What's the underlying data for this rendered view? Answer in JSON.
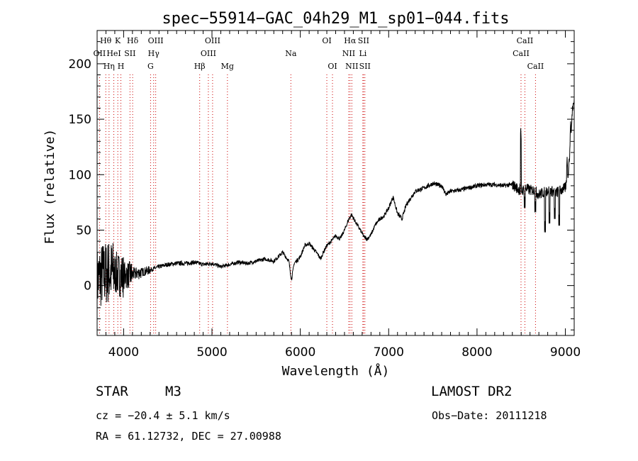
{
  "chart_data": {
    "type": "line",
    "title": "spec−55914−GAC_04h29_M1_sp01−044.fits",
    "xlabel": "Wavelength (Å)",
    "ylabel": "Flux (relative)",
    "xlim": [
      3700,
      9100
    ],
    "ylim": [
      -45,
      230
    ],
    "x_ticks": [
      4000,
      5000,
      6000,
      7000,
      8000,
      9000
    ],
    "y_ticks": [
      0,
      50,
      100,
      150,
      200
    ],
    "grid": false,
    "line_color": "#000000",
    "marker_color": "#cc0000",
    "spectrum_knots": [
      [
        3700,
        5
      ],
      [
        3760,
        10
      ],
      [
        3820,
        12
      ],
      [
        3880,
        12
      ],
      [
        3940,
        10
      ],
      [
        4000,
        9
      ],
      [
        4100,
        10
      ],
      [
        4200,
        12
      ],
      [
        4300,
        14
      ],
      [
        4400,
        17
      ],
      [
        4500,
        19
      ],
      [
        4600,
        20
      ],
      [
        4700,
        20
      ],
      [
        4800,
        21
      ],
      [
        4900,
        19
      ],
      [
        5000,
        20
      ],
      [
        5100,
        17
      ],
      [
        5200,
        19
      ],
      [
        5300,
        21
      ],
      [
        5400,
        20
      ],
      [
        5500,
        22
      ],
      [
        5600,
        24
      ],
      [
        5700,
        22
      ],
      [
        5800,
        30
      ],
      [
        5870,
        22
      ],
      [
        5900,
        5
      ],
      [
        5930,
        20
      ],
      [
        6000,
        26
      ],
      [
        6050,
        36
      ],
      [
        6100,
        38
      ],
      [
        6150,
        33
      ],
      [
        6200,
        28
      ],
      [
        6230,
        24
      ],
      [
        6260,
        30
      ],
      [
        6300,
        36
      ],
      [
        6350,
        40
      ],
      [
        6400,
        45
      ],
      [
        6450,
        42
      ],
      [
        6500,
        50
      ],
      [
        6550,
        60
      ],
      [
        6580,
        64
      ],
      [
        6620,
        58
      ],
      [
        6680,
        50
      ],
      [
        6720,
        44
      ],
      [
        6760,
        42
      ],
      [
        6800,
        46
      ],
      [
        6850,
        55
      ],
      [
        6900,
        60
      ],
      [
        6950,
        63
      ],
      [
        7000,
        70
      ],
      [
        7050,
        80
      ],
      [
        7100,
        65
      ],
      [
        7150,
        60
      ],
      [
        7200,
        73
      ],
      [
        7300,
        85
      ],
      [
        7400,
        88
      ],
      [
        7500,
        92
      ],
      [
        7600,
        90
      ],
      [
        7650,
        82
      ],
      [
        7700,
        85
      ],
      [
        7800,
        86
      ],
      [
        7900,
        88
      ],
      [
        8000,
        90
      ],
      [
        8100,
        91
      ],
      [
        8200,
        91
      ],
      [
        8300,
        90
      ],
      [
        8400,
        91
      ],
      [
        8450,
        88
      ],
      [
        8500,
        85
      ],
      [
        8550,
        88
      ],
      [
        8600,
        86
      ],
      [
        8650,
        86
      ],
      [
        8700,
        82
      ],
      [
        8800,
        86
      ],
      [
        8900,
        84
      ],
      [
        9000,
        88
      ],
      [
        9030,
        100
      ],
      [
        9060,
        130
      ],
      [
        9080,
        160
      ],
      [
        9100,
        165
      ]
    ],
    "spikes": [
      [
        8495,
        142
      ],
      [
        8485,
        92
      ],
      [
        8540,
        80
      ],
      [
        8660,
        76
      ],
      [
        8770,
        58
      ],
      [
        8820,
        66
      ],
      [
        8880,
        70
      ],
      [
        8930,
        64
      ],
      [
        9020,
        116
      ],
      [
        9060,
        148
      ]
    ],
    "lines": [
      {
        "name": "Hθ",
        "wavelength": 3798,
        "row": 1
      },
      {
        "name": "OII",
        "wavelength": 3727,
        "row": 2
      },
      {
        "name": "Hη",
        "wavelength": 3835,
        "row": 3
      },
      {
        "name": "K",
        "wavelength": 3934,
        "row": 1
      },
      {
        "name": "HeI",
        "wavelength": 3889,
        "row": 2
      },
      {
        "name": "H",
        "wavelength": 3969,
        "row": 3
      },
      {
        "name": "Hδ",
        "wavelength": 4102,
        "row": 1
      },
      {
        "name": "SII",
        "wavelength": 4072,
        "row": 2
      },
      {
        "name": "OIII",
        "wavelength": 4363,
        "row": 1
      },
      {
        "name": "Hγ",
        "wavelength": 4340,
        "row": 2
      },
      {
        "name": "G",
        "wavelength": 4305,
        "row": 3
      },
      {
        "name": "OIII",
        "wavelength": 5007,
        "row": 1
      },
      {
        "name": "OIII",
        "wavelength": 4959,
        "row": 2
      },
      {
        "name": "Hβ",
        "wavelength": 4861,
        "row": 3
      },
      {
        "name": "Mg",
        "wavelength": 5175,
        "row": 3
      },
      {
        "name": "Na",
        "wavelength": 5893,
        "row": 2
      },
      {
        "name": "OI",
        "wavelength": 6300,
        "row": 1
      },
      {
        "name": "OI",
        "wavelength": 6364,
        "row": 3
      },
      {
        "name": "Hα",
        "wavelength": 6563,
        "row": 1
      },
      {
        "name": "SII",
        "wavelength": 6716,
        "row": 1
      },
      {
        "name": "NII",
        "wavelength": 6548,
        "row": 2
      },
      {
        "name": "Li",
        "wavelength": 6708,
        "row": 2
      },
      {
        "name": "NII",
        "wavelength": 6583,
        "row": 3
      },
      {
        "name": "SII",
        "wavelength": 6731,
        "row": 3
      },
      {
        "name": "CaII",
        "wavelength": 8542,
        "row": 1
      },
      {
        "name": "CaII",
        "wavelength": 8498,
        "row": 2
      },
      {
        "name": "CaII",
        "wavelength": 8662,
        "row": 3
      }
    ]
  },
  "info": {
    "object_class": "STAR",
    "subclass": "M3",
    "survey": "LAMOST DR2",
    "cz": "cz = −20.4 ± 5.1 km/s",
    "obs_date": "Obs−Date: 20111218",
    "coords": "RA =  61.12732, DEC =  27.00988"
  }
}
